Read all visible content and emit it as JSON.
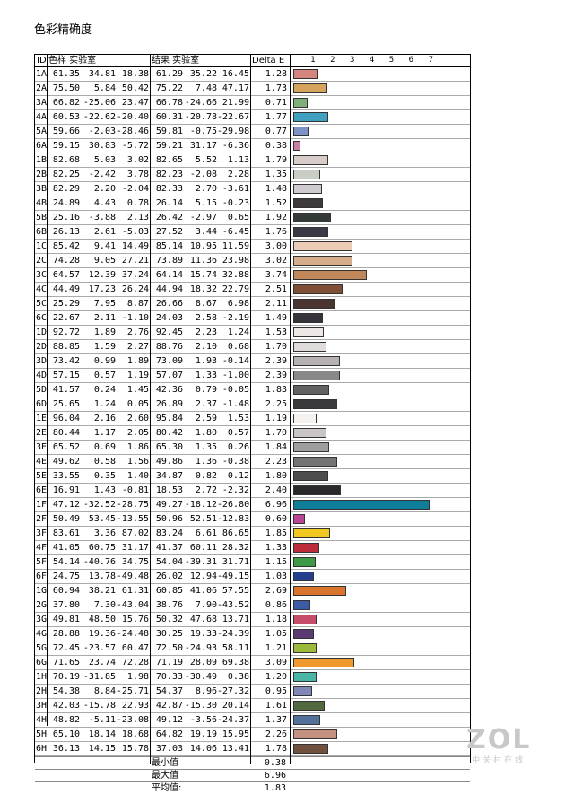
{
  "title": "色彩精确度",
  "headers": {
    "id": "ID",
    "sample": "色样 实验室",
    "result": "结果 实验室",
    "delta": "Delta E"
  },
  "chart_data": {
    "type": "bar",
    "orientation": "horizontal",
    "xlim": [
      0,
      7
    ],
    "ticks": [
      1,
      2,
      3,
      4,
      5,
      6,
      7
    ],
    "rows": [
      {
        "id": "1A",
        "ref": [
          "61.35",
          "34.81",
          "18.38"
        ],
        "res": [
          "61.29",
          "35.22",
          "16.45"
        ],
        "de": 1.28,
        "color": "#d4867e"
      },
      {
        "id": "2A",
        "ref": [
          "75.50",
          "5.84",
          "50.42"
        ],
        "res": [
          "75.22",
          "7.48",
          "47.17"
        ],
        "de": 1.73,
        "color": "#d4a35c"
      },
      {
        "id": "3A",
        "ref": [
          "66.82",
          "-25.06",
          "23.47"
        ],
        "res": [
          "66.78",
          "-24.66",
          "21.99"
        ],
        "de": 0.71,
        "color": "#7fb07a"
      },
      {
        "id": "4A",
        "ref": [
          "60.53",
          "-22.62",
          "-20.40"
        ],
        "res": [
          "60.31",
          "-20.78",
          "-22.67"
        ],
        "de": 1.77,
        "color": "#3fa0c0"
      },
      {
        "id": "5A",
        "ref": [
          "59.66",
          "-2.03",
          "-28.46"
        ],
        "res": [
          "59.81",
          "-0.75",
          "-29.98"
        ],
        "de": 0.77,
        "color": "#7f92c8"
      },
      {
        "id": "6A",
        "ref": [
          "59.15",
          "30.83",
          "-5.72"
        ],
        "res": [
          "59.21",
          "31.17",
          "-6.36"
        ],
        "de": 0.38,
        "color": "#c87fa6"
      },
      {
        "id": "1B",
        "ref": [
          "82.68",
          "5.03",
          "3.02"
        ],
        "res": [
          "82.65",
          "5.52",
          "1.13"
        ],
        "de": 1.79,
        "color": "#d8ccc9"
      },
      {
        "id": "2B",
        "ref": [
          "82.25",
          "-2.42",
          "3.78"
        ],
        "res": [
          "82.23",
          "-2.08",
          "2.28"
        ],
        "de": 1.35,
        "color": "#c8cec4"
      },
      {
        "id": "3B",
        "ref": [
          "82.29",
          "2.20",
          "-2.04"
        ],
        "res": [
          "82.33",
          "2.70",
          "-3.61"
        ],
        "de": 1.48,
        "color": "#cfcad0"
      },
      {
        "id": "4B",
        "ref": [
          "24.89",
          "4.43",
          "0.78"
        ],
        "res": [
          "26.14",
          "5.15",
          "-0.23"
        ],
        "de": 1.52,
        "color": "#3e393a"
      },
      {
        "id": "5B",
        "ref": [
          "25.16",
          "-3.88",
          "2.13"
        ],
        "res": [
          "26.42",
          "-2.97",
          "0.65"
        ],
        "de": 1.92,
        "color": "#343a36"
      },
      {
        "id": "6B",
        "ref": [
          "26.13",
          "2.61",
          "-5.03"
        ],
        "res": [
          "27.52",
          "3.44",
          "-6.45"
        ],
        "de": 1.76,
        "color": "#3a3a44"
      },
      {
        "id": "1C",
        "ref": [
          "85.42",
          "9.41",
          "14.49"
        ],
        "res": [
          "85.14",
          "10.95",
          "11.59"
        ],
        "de": 3.0,
        "color": "#eccbb7"
      },
      {
        "id": "2C",
        "ref": [
          "74.28",
          "9.05",
          "27.21"
        ],
        "res": [
          "73.89",
          "11.36",
          "23.98"
        ],
        "de": 3.02,
        "color": "#d6ad8c"
      },
      {
        "id": "3C",
        "ref": [
          "64.57",
          "12.39",
          "37.24"
        ],
        "res": [
          "64.14",
          "15.74",
          "32.88"
        ],
        "de": 3.74,
        "color": "#c0875b"
      },
      {
        "id": "4C",
        "ref": [
          "44.49",
          "17.23",
          "26.24"
        ],
        "res": [
          "44.94",
          "18.32",
          "22.79"
        ],
        "de": 2.51,
        "color": "#7f4f35"
      },
      {
        "id": "5C",
        "ref": [
          "25.29",
          "7.95",
          "8.87"
        ],
        "res": [
          "26.66",
          "8.67",
          "6.98"
        ],
        "de": 2.11,
        "color": "#4a3530"
      },
      {
        "id": "6C",
        "ref": [
          "22.67",
          "2.11",
          "-1.10"
        ],
        "res": [
          "24.03",
          "2.58",
          "-2.19"
        ],
        "de": 1.49,
        "color": "#36333a"
      },
      {
        "id": "1D",
        "ref": [
          "92.72",
          "1.89",
          "2.76"
        ],
        "res": [
          "92.45",
          "2.23",
          "1.24"
        ],
        "de": 1.53,
        "color": "#ede8e6"
      },
      {
        "id": "2D",
        "ref": [
          "88.85",
          "1.59",
          "2.27"
        ],
        "res": [
          "88.76",
          "2.10",
          "0.68"
        ],
        "de": 1.7,
        "color": "#e0dcdb"
      },
      {
        "id": "3D",
        "ref": [
          "73.42",
          "0.99",
          "1.89"
        ],
        "res": [
          "73.09",
          "1.93",
          "-0.14"
        ],
        "de": 2.39,
        "color": "#b5b2b1"
      },
      {
        "id": "4D",
        "ref": [
          "57.15",
          "0.57",
          "1.19"
        ],
        "res": [
          "57.07",
          "1.33",
          "-1.00"
        ],
        "de": 2.39,
        "color": "#8a8888"
      },
      {
        "id": "5D",
        "ref": [
          "41.57",
          "0.24",
          "1.45"
        ],
        "res": [
          "42.36",
          "0.79",
          "-0.05"
        ],
        "de": 1.83,
        "color": "#636262"
      },
      {
        "id": "6D",
        "ref": [
          "25.65",
          "1.24",
          "0.05"
        ],
        "res": [
          "26.89",
          "2.37",
          "-1.48"
        ],
        "de": 2.25,
        "color": "#3a393b"
      },
      {
        "id": "1E",
        "ref": [
          "96.04",
          "2.16",
          "2.60"
        ],
        "res": [
          "95.84",
          "2.59",
          "1.53"
        ],
        "de": 1.19,
        "color": "#f6f2f0"
      },
      {
        "id": "2E",
        "ref": [
          "80.44",
          "1.17",
          "2.05"
        ],
        "res": [
          "80.42",
          "1.80",
          "0.57"
        ],
        "de": 1.7,
        "color": "#c9c6c5"
      },
      {
        "id": "3E",
        "ref": [
          "65.52",
          "0.69",
          "1.86"
        ],
        "res": [
          "65.30",
          "1.35",
          "0.26"
        ],
        "de": 1.84,
        "color": "#a09e9d"
      },
      {
        "id": "4E",
        "ref": [
          "49.62",
          "0.58",
          "1.56"
        ],
        "res": [
          "49.86",
          "1.36",
          "-0.38"
        ],
        "de": 2.23,
        "color": "#757474"
      },
      {
        "id": "5E",
        "ref": [
          "33.55",
          "0.35",
          "1.40"
        ],
        "res": [
          "34.87",
          "0.82",
          "0.12"
        ],
        "de": 1.8,
        "color": "#4e4e4e"
      },
      {
        "id": "6E",
        "ref": [
          "16.91",
          "1.43",
          "-0.81"
        ],
        "res": [
          "18.53",
          "2.72",
          "-2.32"
        ],
        "de": 2.4,
        "color": "#2a282a"
      },
      {
        "id": "1F",
        "ref": [
          "47.12",
          "-32.52",
          "-28.75"
        ],
        "res": [
          "49.27",
          "-18.12",
          "-26.80"
        ],
        "de": 6.96,
        "color": "#0f7e98"
      },
      {
        "id": "2F",
        "ref": [
          "50.49",
          "53.45",
          "-13.55"
        ],
        "res": [
          "50.96",
          "52.51",
          "-12.83"
        ],
        "de": 0.6,
        "color": "#b84793"
      },
      {
        "id": "3F",
        "ref": [
          "83.61",
          "3.36",
          "87.02"
        ],
        "res": [
          "83.24",
          "6.61",
          "86.65"
        ],
        "de": 1.85,
        "color": "#f0c820"
      },
      {
        "id": "4F",
        "ref": [
          "41.05",
          "60.75",
          "31.17"
        ],
        "res": [
          "41.37",
          "60.11",
          "28.32"
        ],
        "de": 1.33,
        "color": "#bd2c3a"
      },
      {
        "id": "5F",
        "ref": [
          "54.14",
          "-40.76",
          "34.75"
        ],
        "res": [
          "54.04",
          "-39.31",
          "31.71"
        ],
        "de": 1.15,
        "color": "#3f9a45"
      },
      {
        "id": "6F",
        "ref": [
          "24.75",
          "13.78",
          "-49.48"
        ],
        "res": [
          "26.02",
          "12.94",
          "-49.15"
        ],
        "de": 1.03,
        "color": "#233f8e"
      },
      {
        "id": "1G",
        "ref": [
          "60.94",
          "38.21",
          "61.31"
        ],
        "res": [
          "60.85",
          "41.06",
          "57.55"
        ],
        "de": 2.69,
        "color": "#d9742e"
      },
      {
        "id": "2G",
        "ref": [
          "37.80",
          "7.30",
          "-43.04"
        ],
        "res": [
          "38.76",
          "7.90",
          "-43.52"
        ],
        "de": 0.86,
        "color": "#3d5aa4"
      },
      {
        "id": "3G",
        "ref": [
          "49.81",
          "48.50",
          "15.76"
        ],
        "res": [
          "50.32",
          "47.68",
          "13.71"
        ],
        "de": 1.18,
        "color": "#c54d6a"
      },
      {
        "id": "4G",
        "ref": [
          "28.88",
          "19.36",
          "-24.48"
        ],
        "res": [
          "30.25",
          "19.33",
          "-24.39"
        ],
        "de": 1.05,
        "color": "#5a3b71"
      },
      {
        "id": "5G",
        "ref": [
          "72.45",
          "-23.57",
          "60.47"
        ],
        "res": [
          "72.50",
          "-24.93",
          "58.11"
        ],
        "de": 1.21,
        "color": "#9cba3d"
      },
      {
        "id": "6G",
        "ref": [
          "71.65",
          "23.74",
          "72.28"
        ],
        "res": [
          "71.19",
          "28.09",
          "69.38"
        ],
        "de": 3.09,
        "color": "#ee9a2e"
      },
      {
        "id": "1H",
        "ref": [
          "70.19",
          "-31.85",
          "1.98"
        ],
        "res": [
          "70.33",
          "-30.49",
          "0.38"
        ],
        "de": 1.2,
        "color": "#49b5a6"
      },
      {
        "id": "2H",
        "ref": [
          "54.38",
          "8.84",
          "-25.71"
        ],
        "res": [
          "54.37",
          "8.96",
          "-27.32"
        ],
        "de": 0.95,
        "color": "#8086b6"
      },
      {
        "id": "3H",
        "ref": [
          "42.03",
          "-15.78",
          "22.93"
        ],
        "res": [
          "42.87",
          "-15.30",
          "20.14"
        ],
        "de": 1.61,
        "color": "#52683e"
      },
      {
        "id": "4H",
        "ref": [
          "48.82",
          "-5.11",
          "-23.08"
        ],
        "res": [
          "49.12",
          "-3.56",
          "-24.37"
        ],
        "de": 1.37,
        "color": "#537099"
      },
      {
        "id": "5H",
        "ref": [
          "65.10",
          "18.14",
          "18.68"
        ],
        "res": [
          "64.82",
          "19.19",
          "15.95"
        ],
        "de": 2.26,
        "color": "#c49180"
      },
      {
        "id": "6H",
        "ref": [
          "36.13",
          "14.15",
          "15.78"
        ],
        "res": [
          "37.03",
          "14.06",
          "13.41"
        ],
        "de": 1.78,
        "color": "#70503f"
      }
    ]
  },
  "summary": [
    {
      "label": "最小值",
      "value": "0.38"
    },
    {
      "label": "最大值",
      "value": "6.96"
    },
    {
      "label": "平均值:",
      "value": "1.83"
    }
  ],
  "watermark": {
    "logo": "ZOL",
    "sub": "中关村在线"
  }
}
